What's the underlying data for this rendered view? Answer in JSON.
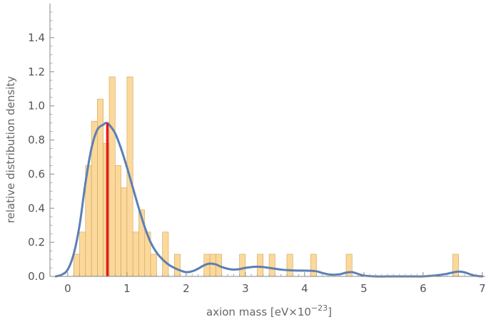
{
  "chart_data": {
    "type": "bar",
    "title": "",
    "xlabel": "axion mass [eV×10",
    "xlabel_exponent": "−23",
    "xlabel_close": "]",
    "ylabel": "relative distribution density",
    "xlim": [
      -0.3,
      7.05
    ],
    "ylim": [
      0,
      1.6
    ],
    "x_ticks": [
      0,
      1,
      2,
      3,
      4,
      5,
      6,
      7
    ],
    "y_ticks": [
      0.0,
      0.2,
      0.4,
      0.6,
      0.8,
      1.0,
      1.2,
      1.4
    ],
    "y_tick_labels": [
      "0.0",
      "0.2",
      "0.4",
      "0.6",
      "0.8",
      "1.0",
      "1.2",
      "1.4"
    ],
    "grid": false,
    "histogram": {
      "bin_width": 0.1,
      "bins": [
        {
          "x0": 0.1,
          "value": 0.13
        },
        {
          "x0": 0.2,
          "value": 0.26
        },
        {
          "x0": 0.3,
          "value": 0.65
        },
        {
          "x0": 0.4,
          "value": 0.91
        },
        {
          "x0": 0.5,
          "value": 1.04
        },
        {
          "x0": 0.6,
          "value": 0.78
        },
        {
          "x0": 0.7,
          "value": 1.17
        },
        {
          "x0": 0.8,
          "value": 0.65
        },
        {
          "x0": 0.9,
          "value": 0.52
        },
        {
          "x0": 1.0,
          "value": 1.17
        },
        {
          "x0": 1.1,
          "value": 0.26
        },
        {
          "x0": 1.2,
          "value": 0.39
        },
        {
          "x0": 1.3,
          "value": 0.26
        },
        {
          "x0": 1.4,
          "value": 0.13
        },
        {
          "x0": 1.6,
          "value": 0.26
        },
        {
          "x0": 1.8,
          "value": 0.13
        },
        {
          "x0": 2.3,
          "value": 0.13
        },
        {
          "x0": 2.4,
          "value": 0.13
        },
        {
          "x0": 2.5,
          "value": 0.13
        },
        {
          "x0": 2.9,
          "value": 0.13
        },
        {
          "x0": 3.2,
          "value": 0.13
        },
        {
          "x0": 3.4,
          "value": 0.13
        },
        {
          "x0": 3.7,
          "value": 0.13
        },
        {
          "x0": 4.1,
          "value": 0.13
        },
        {
          "x0": 4.7,
          "value": 0.13
        },
        {
          "x0": 6.5,
          "value": 0.13
        }
      ],
      "fill": "#fcd89a",
      "stroke": "#c9a55f"
    },
    "density_curve": {
      "color": "#5b7fb5",
      "x": [
        -0.2,
        -0.1,
        0.0,
        0.1,
        0.2,
        0.3,
        0.4,
        0.5,
        0.6,
        0.65,
        0.7,
        0.8,
        0.9,
        1.0,
        1.1,
        1.2,
        1.3,
        1.4,
        1.5,
        1.6,
        1.7,
        1.8,
        1.9,
        2.0,
        2.1,
        2.2,
        2.3,
        2.4,
        2.5,
        2.6,
        2.7,
        2.8,
        2.9,
        3.0,
        3.1,
        3.2,
        3.3,
        3.4,
        3.5,
        3.6,
        3.7,
        3.8,
        3.9,
        4.0,
        4.1,
        4.2,
        4.3,
        4.4,
        4.5,
        4.6,
        4.7,
        4.8,
        4.9,
        5.0,
        5.2,
        5.5,
        5.8,
        6.0,
        6.2,
        6.4,
        6.5,
        6.6,
        6.7,
        6.8,
        6.9,
        7.0
      ],
      "y": [
        0.0,
        0.01,
        0.04,
        0.13,
        0.3,
        0.55,
        0.75,
        0.86,
        0.89,
        0.9,
        0.89,
        0.84,
        0.75,
        0.64,
        0.52,
        0.4,
        0.29,
        0.2,
        0.14,
        0.1,
        0.07,
        0.05,
        0.035,
        0.025,
        0.03,
        0.045,
        0.065,
        0.075,
        0.07,
        0.055,
        0.045,
        0.04,
        0.043,
        0.05,
        0.055,
        0.057,
        0.055,
        0.05,
        0.045,
        0.04,
        0.037,
        0.035,
        0.034,
        0.034,
        0.033,
        0.03,
        0.02,
        0.012,
        0.01,
        0.013,
        0.022,
        0.025,
        0.015,
        0.005,
        0.0,
        0.0,
        0.0,
        0.0,
        0.005,
        0.015,
        0.023,
        0.028,
        0.024,
        0.012,
        0.003,
        0.0
      ]
    },
    "marker": {
      "x": 0.67,
      "y": 0.9,
      "color": "#e51a1a"
    }
  }
}
